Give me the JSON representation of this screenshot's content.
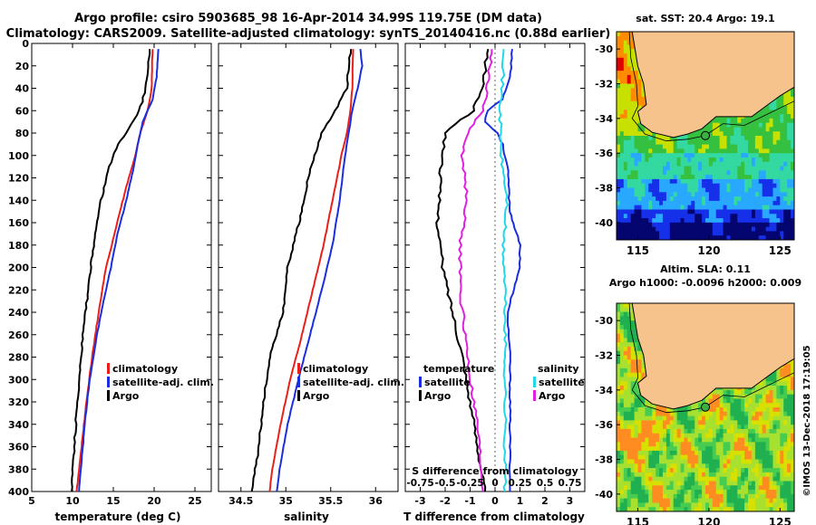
{
  "header": {
    "title_line1": "Argo profile: csiro 5903685_98 16-Apr-2014 34.99S 119.75E (DM data)",
    "title_line2": "Climatology: CARS2009. Satellite-adjusted climatology: synTS_20140416.nc (0.88d earlier)"
  },
  "colors": {
    "climatology": "#e8201c",
    "satellite": "#1a2ee0",
    "argo": "#000000",
    "magenta": "#e020e0",
    "cyan": "#22d8e8",
    "land": "#f6c38c"
  },
  "chart_data": [
    {
      "id": "temperature",
      "type": "line",
      "xlabel": "temperature (deg C)",
      "ylabel": "",
      "xlim": [
        5,
        27
      ],
      "ylim": [
        400,
        0
      ],
      "xticks": [
        "5",
        "10",
        "15",
        "20",
        "25"
      ],
      "yticks": [
        "0",
        "20",
        "40",
        "60",
        "80",
        "100",
        "120",
        "140",
        "160",
        "180",
        "200",
        "220",
        "240",
        "260",
        "280",
        "300",
        "320",
        "340",
        "360",
        "380",
        "400"
      ],
      "legend": [
        "climatology",
        "satellite-adj. clim.",
        "Argo"
      ],
      "legend_position": "lower-right",
      "series": [
        {
          "name": "climatology",
          "color": "#e8201c",
          "depth": [
            5,
            40,
            60,
            80,
            100,
            120,
            150,
            180,
            200,
            240,
            280,
            320,
            360,
            400
          ],
          "values": [
            19.8,
            19.7,
            19.2,
            18.3,
            17.7,
            16.9,
            15.8,
            14.8,
            14.1,
            13.2,
            12.4,
            11.7,
            11.1,
            10.5
          ]
        },
        {
          "name": "satellite-adj. clim.",
          "color": "#1a2ee0",
          "depth": [
            5,
            30,
            50,
            70,
            90,
            110,
            140,
            170,
            200,
            230,
            260,
            300,
            340,
            400
          ],
          "values": [
            20.5,
            20.3,
            19.8,
            18.6,
            18.0,
            17.5,
            16.6,
            15.5,
            14.7,
            13.8,
            13.0,
            12.1,
            11.5,
            10.8
          ]
        },
        {
          "name": "Argo",
          "color": "#000000",
          "depth": [
            5,
            40,
            60,
            80,
            90,
            110,
            140,
            170,
            200,
            240,
            280,
            320,
            360,
            400
          ],
          "values": [
            19.5,
            19.0,
            18.2,
            16.5,
            15.6,
            14.5,
            13.5,
            12.8,
            12.2,
            11.6,
            11.0,
            10.6,
            10.2,
            9.9
          ]
        }
      ]
    },
    {
      "id": "salinity",
      "type": "line",
      "xlabel": "salinity",
      "ylabel": "",
      "xlim": [
        34.25,
        36.25
      ],
      "ylim": [
        400,
        0
      ],
      "xticks": [
        "34.5",
        "35",
        "35.5",
        "36"
      ],
      "legend": [
        "climatology",
        "satellite-adj. clim.",
        "Argo"
      ],
      "legend_position": "lower-center",
      "series": [
        {
          "name": "climatology",
          "color": "#e8201c",
          "depth": [
            5,
            40,
            60,
            80,
            100,
            140,
            180,
            220,
            260,
            300,
            340,
            380,
            400
          ],
          "values": [
            35.75,
            35.74,
            35.72,
            35.68,
            35.62,
            35.52,
            35.42,
            35.3,
            35.18,
            35.05,
            34.94,
            34.85,
            34.82
          ]
        },
        {
          "name": "satellite-adj. clim.",
          "color": "#1a2ee0",
          "depth": [
            5,
            20,
            40,
            60,
            80,
            100,
            140,
            180,
            220,
            260,
            300,
            340,
            380,
            400
          ],
          "values": [
            35.83,
            35.85,
            35.8,
            35.74,
            35.7,
            35.66,
            35.6,
            35.52,
            35.4,
            35.27,
            35.14,
            35.02,
            34.93,
            34.9
          ]
        },
        {
          "name": "Argo",
          "color": "#000000",
          "depth": [
            5,
            40,
            60,
            80,
            100,
            120,
            150,
            180,
            200,
            240,
            280,
            320,
            360,
            400
          ],
          "values": [
            35.72,
            35.68,
            35.55,
            35.4,
            35.32,
            35.25,
            35.18,
            35.08,
            35.02,
            34.97,
            34.82,
            34.75,
            34.7,
            34.62
          ]
        }
      ]
    },
    {
      "id": "differences",
      "type": "line",
      "xlabel": "T difference from climatology",
      "x2label": "S difference from climatology",
      "xlim": [
        -3.6,
        3.6
      ],
      "ylim": [
        400,
        0
      ],
      "xticks": [
        "-3",
        "-2",
        "-1",
        "0",
        "1",
        "2",
        "3"
      ],
      "x2ticks": [
        "-0.75",
        "-0.5",
        "-0.25",
        "0",
        "0.25",
        "0.5",
        "0.75"
      ],
      "legend_left_title": "temperature",
      "legend_left": [
        "satellite",
        "Argo"
      ],
      "legend_right_title": "salinity",
      "legend_right": [
        "satellite",
        "Argo"
      ],
      "series": [
        {
          "name": "temperature satellite",
          "color": "#1a2ee0",
          "depth": [
            5,
            30,
            50,
            60,
            70,
            80,
            90,
            110,
            150,
            180,
            200,
            215,
            240,
            280,
            320,
            360,
            400
          ],
          "values": [
            0.7,
            0.6,
            0.3,
            -0.3,
            -0.4,
            0.1,
            0.3,
            0.5,
            0.6,
            1.0,
            1.0,
            0.8,
            0.5,
            0.6,
            0.6,
            0.6,
            0.6
          ]
        },
        {
          "name": "temperature Argo",
          "color": "#000000",
          "depth": [
            5,
            40,
            60,
            80,
            100,
            120,
            160,
            200,
            240,
            280,
            320,
            360,
            400
          ],
          "values": [
            -0.3,
            -0.5,
            -0.9,
            -2.0,
            -2.1,
            -2.2,
            -2.3,
            -2.1,
            -1.7,
            -1.3,
            -1.0,
            -0.7,
            -0.4
          ]
        },
        {
          "name": "salinity satellite",
          "color": "#22d8e8",
          "depth": [
            5,
            60,
            100,
            140,
            180,
            220,
            260,
            300,
            340,
            400
          ],
          "values": [
            0.1,
            0.05,
            0.06,
            0.12,
            0.08,
            0.1,
            0.1,
            0.1,
            0.1,
            0.1
          ]
        },
        {
          "name": "salinity Argo",
          "color": "#e020e0",
          "depth": [
            5,
            40,
            60,
            80,
            100,
            140,
            180,
            220,
            260,
            300,
            340,
            400
          ],
          "values": [
            -0.03,
            -0.08,
            -0.12,
            -0.28,
            -0.33,
            -0.28,
            -0.35,
            -0.35,
            -0.3,
            -0.25,
            -0.18,
            -0.12
          ]
        }
      ]
    },
    {
      "id": "sst_map",
      "type": "heatmap",
      "title": "sat. SST: 20.4 Argo: 19.1",
      "xlim": [
        113.5,
        126
      ],
      "ylim": [
        -41,
        -29
      ],
      "xticks": [
        "115",
        "120",
        "125"
      ],
      "yticks": [
        "-30",
        "-32",
        "-34",
        "-36",
        "-38",
        "-40"
      ],
      "marker": {
        "lon": 119.75,
        "lat": -34.99
      }
    },
    {
      "id": "sla_map",
      "type": "heatmap",
      "title": "Altim. SLA: 0.11",
      "subtitle": "Argo h1000: -0.0096 h2000: 0.009",
      "xlim": [
        113.5,
        126
      ],
      "ylim": [
        -41,
        -29
      ],
      "xticks": [
        "115",
        "120",
        "125"
      ],
      "yticks": [
        "-30",
        "-32",
        "-34",
        "-36",
        "-38",
        "-40"
      ],
      "marker": {
        "lon": 119.75,
        "lat": -34.99
      }
    }
  ],
  "credit": "©IMOS 13-Dec-2018 17:19:05"
}
